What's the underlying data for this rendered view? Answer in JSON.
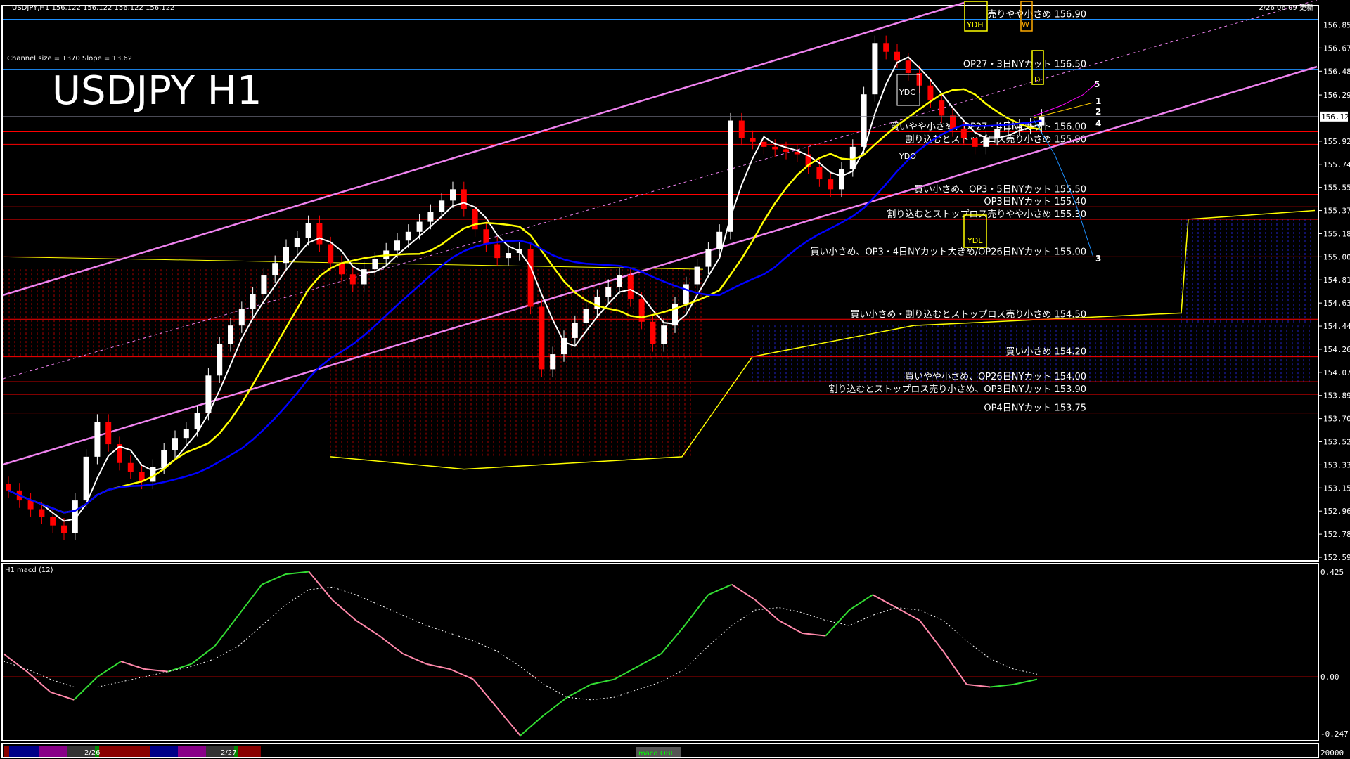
{
  "window": {
    "header": "USDJPY,H1  156.122 156.122 156.122 156.122",
    "updated": "2/26 06:09 更新",
    "channel_info": "Channel size = 1370 Slope = 13.62",
    "big_title": "USDJPY H1",
    "current_price": "156.122",
    "macd_label": "H1  macd (12)",
    "bottom_bar": {
      "dates": [
        "2/26",
        "2/27"
      ],
      "indicator_tag": "macd OBL",
      "volume_scale": "20000"
    }
  },
  "colors": {
    "background": "#000000",
    "bull": "#ffffff",
    "bear": "#ff0000",
    "level_line": "#ff0000",
    "blue_level": "#1e90ff",
    "channel": "#ee82ee",
    "ma_fast": "#ffffff",
    "ma_mid": "#ffff00",
    "ma_slow": "#0000ff",
    "macd": "#33dd33",
    "macd_negative": "#ff88aa"
  },
  "markers": {
    "ydh": "YDH",
    "ydc": "YDC",
    "ydo": "YDO",
    "ydl": "YDL",
    "w": "W",
    "d": "D",
    "projections": [
      "5",
      "1",
      "2",
      "4",
      "3"
    ]
  },
  "chart_data": [
    {
      "type": "candlestick",
      "title": "USDJPY H1",
      "ylim": [
        152.595,
        156.855
      ],
      "y_ticks": [
        "156.855",
        "156.670",
        "156.485",
        "156.295",
        "155.925",
        "155.740",
        "155.555",
        "155.370",
        "155.185",
        "155.000",
        "154.815",
        "154.630",
        "154.445",
        "154.260",
        "154.075",
        "153.890",
        "153.705",
        "153.520",
        "153.335",
        "153.150",
        "152.965",
        "152.780",
        "152.595"
      ],
      "grid": false,
      "close": [
        153.13,
        153.05,
        152.98,
        152.92,
        152.85,
        152.79,
        153.05,
        153.4,
        153.68,
        153.5,
        153.35,
        153.28,
        153.2,
        153.32,
        153.45,
        153.55,
        153.62,
        153.75,
        154.05,
        154.3,
        154.45,
        154.58,
        154.7,
        154.85,
        154.95,
        155.08,
        155.15,
        155.27,
        155.1,
        154.95,
        154.86,
        154.78,
        154.9,
        154.98,
        155.05,
        155.13,
        155.2,
        155.28,
        155.36,
        155.45,
        155.54,
        155.38,
        155.22,
        155.1,
        154.99,
        155.03,
        155.06,
        154.6,
        154.1,
        154.22,
        154.35,
        154.47,
        154.58,
        154.68,
        154.76,
        154.85,
        154.66,
        154.48,
        154.3,
        154.45,
        154.62,
        154.78,
        154.92,
        155.06,
        155.2,
        156.09,
        155.95,
        155.92,
        155.88,
        155.86,
        155.84,
        155.82,
        155.72,
        155.62,
        155.54,
        155.7,
        155.88,
        156.3,
        156.71,
        156.64,
        156.57,
        156.47,
        156.37,
        156.25,
        156.13,
        156.02,
        155.95,
        155.88,
        155.95,
        156.02,
        156.03,
        156.04,
        156.05,
        156.122
      ],
      "levels": [
        {
          "price": 156.9,
          "label": "売りやや小さめ 156.90",
          "color": "#1e90ff"
        },
        {
          "price": 156.5,
          "label": "OP27・3日NYカット 156.50",
          "color": "#1e90ff"
        },
        {
          "price": 156.0,
          "label": "買いやや小さめ、OP27・4日NYカット 156.00",
          "color": "#ff0000"
        },
        {
          "price": 155.9,
          "label": "割り込むとストップロス売り小さめ 155.90",
          "color": "#ff0000"
        },
        {
          "price": 155.5,
          "label": "買い小さめ、OP3・5日NYカット 155.50",
          "color": "#ff0000"
        },
        {
          "price": 155.4,
          "label": "OP3日NYカット 155.40",
          "color": "#ff0000"
        },
        {
          "price": 155.3,
          "label": "割り込むとストップロス売りやや小さめ 155.30",
          "color": "#ff0000"
        },
        {
          "price": 155.0,
          "label": "買い小さめ、OP3・4日NYカット大きめ/OP26日NYカット 155.00",
          "color": "#ff0000"
        },
        {
          "price": 154.5,
          "label": "買い小さめ・割り込むとストップロス売り小さめ 154.50",
          "color": "#ff0000"
        },
        {
          "price": 154.2,
          "label": "買い小さめ 154.20",
          "color": "#ff0000"
        },
        {
          "price": 154.0,
          "label": "買いやや小さめ、OP26日NYカット 154.00",
          "color": "#ff0000"
        },
        {
          "price": 153.9,
          "label": "割り込むとストップロス売り小さめ、OP3日NYカット 153.90",
          "color": "#ff0000"
        },
        {
          "price": 153.75,
          "label": "OP4日NYカット 153.75",
          "color": "#ff0000"
        }
      ]
    },
    {
      "type": "line",
      "title": "macd (12)",
      "ylim": [
        -0.247,
        0.425
      ],
      "y_ticks": [
        "0.425",
        "0.00",
        "-0.247"
      ],
      "macd": [
        0.09,
        0.02,
        -0.06,
        -0.09,
        0.0,
        0.06,
        0.03,
        0.02,
        0.05,
        0.12,
        0.24,
        0.36,
        0.4,
        0.41,
        0.3,
        0.22,
        0.16,
        0.09,
        0.05,
        0.03,
        -0.01,
        -0.12,
        -0.23,
        -0.15,
        -0.08,
        -0.03,
        -0.01,
        0.04,
        0.09,
        0.2,
        0.32,
        0.36,
        0.3,
        0.22,
        0.17,
        0.16,
        0.26,
        0.32,
        0.27,
        0.22,
        0.1,
        -0.03,
        -0.04,
        -0.03,
        -0.01
      ],
      "signal": [
        0.06,
        0.03,
        -0.01,
        -0.04,
        -0.04,
        -0.02,
        0.0,
        0.02,
        0.04,
        0.07,
        0.12,
        0.2,
        0.28,
        0.34,
        0.35,
        0.32,
        0.28,
        0.24,
        0.2,
        0.17,
        0.14,
        0.1,
        0.04,
        -0.03,
        -0.08,
        -0.09,
        -0.08,
        -0.05,
        -0.02,
        0.03,
        0.12,
        0.2,
        0.26,
        0.27,
        0.25,
        0.22,
        0.2,
        0.24,
        0.27,
        0.26,
        0.22,
        0.14,
        0.07,
        0.03,
        0.01
      ]
    }
  ]
}
